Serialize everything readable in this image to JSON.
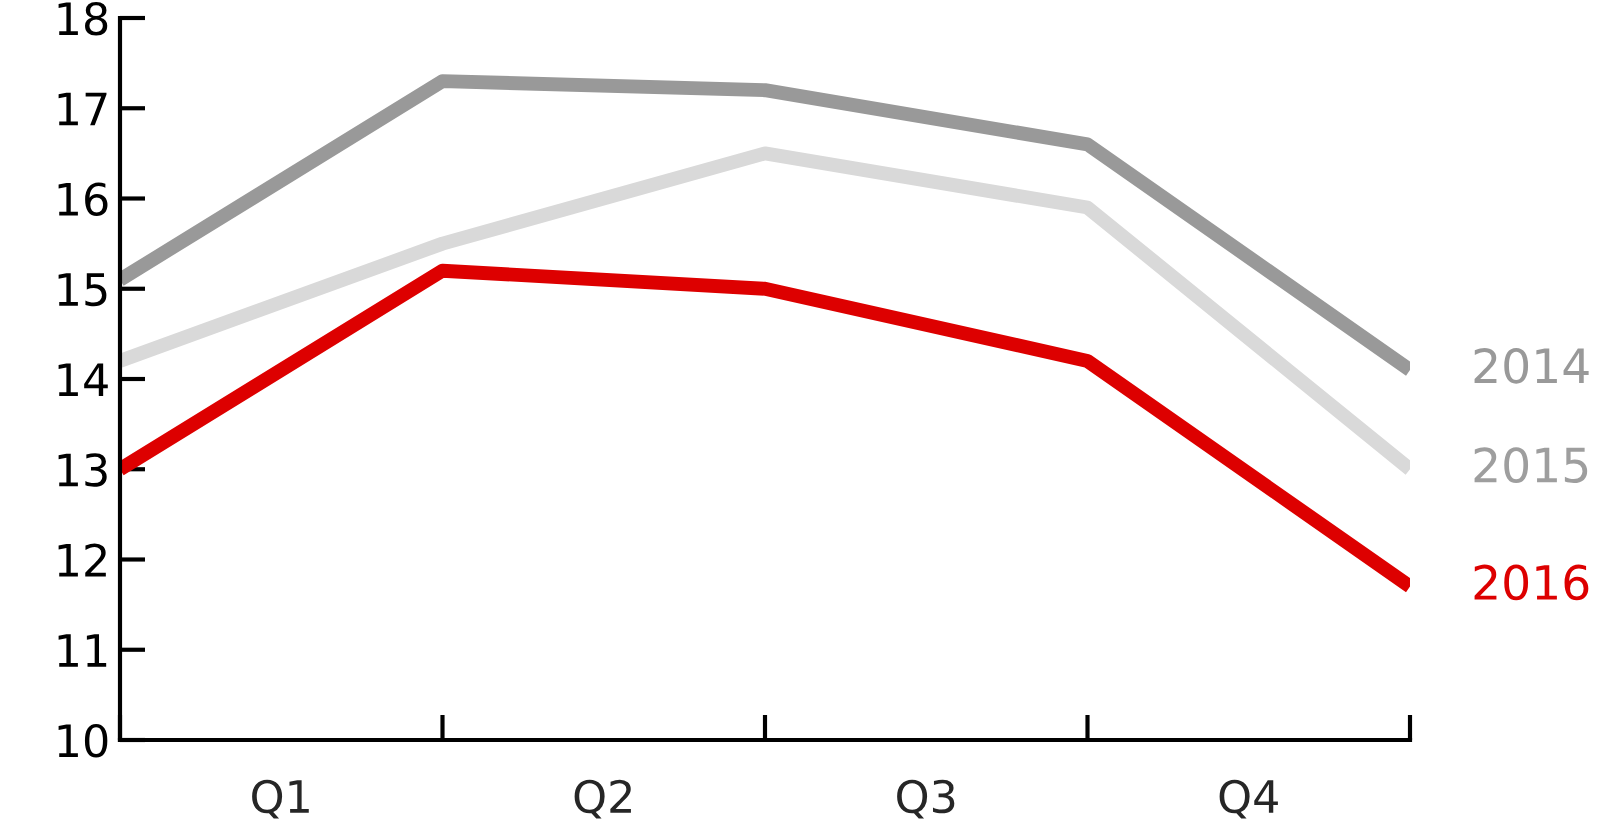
{
  "chart_data": {
    "type": "line",
    "series": [
      {
        "name": "2014",
        "color": "#999999",
        "values": [
          15.1,
          17.3,
          17.2,
          16.6,
          14.1
        ]
      },
      {
        "name": "2015",
        "color": "#d9d9d9",
        "values": [
          14.2,
          15.5,
          16.5,
          15.9,
          13.0
        ]
      },
      {
        "name": "2016",
        "color": "#dd0000",
        "values": [
          13.0,
          15.2,
          15.0,
          14.2,
          11.7
        ]
      }
    ],
    "categories": [
      null,
      null,
      null,
      null,
      null
    ],
    "annotations": [
      "Q1",
      "Q2",
      "Q3",
      "Q4"
    ],
    "ylim": [
      10,
      18
    ],
    "yticks": [
      10,
      11,
      12,
      13,
      14,
      15,
      16,
      17,
      18
    ],
    "grid": false,
    "legend": false,
    "marker": "none",
    "line_style": "solid"
  }
}
